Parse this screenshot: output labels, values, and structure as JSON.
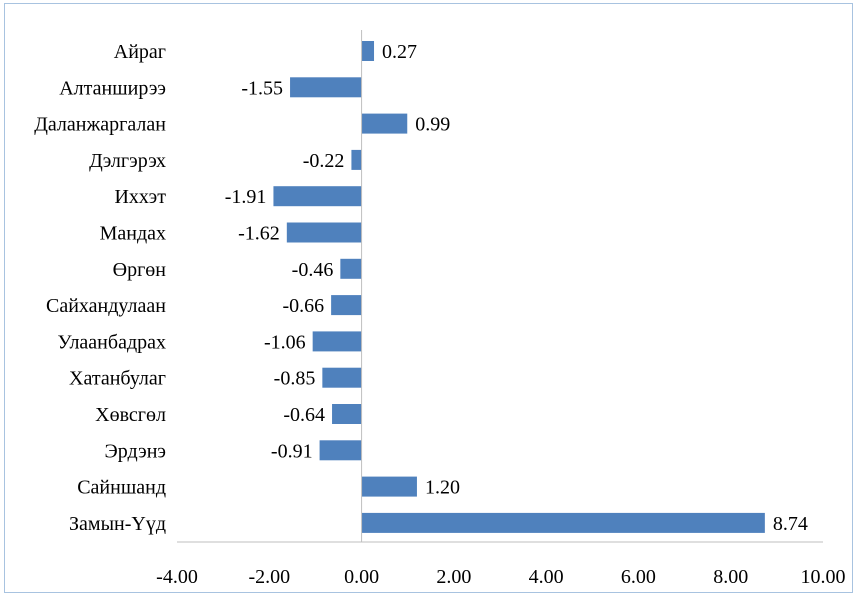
{
  "chart_data": {
    "type": "bar",
    "orientation": "horizontal",
    "categories": [
      "Айраг",
      "Алтанширээ",
      "Даланжаргалан",
      "Дэлгэрэх",
      "Иххэт",
      "Мандах",
      "Өргөн",
      "Сайхандулаан",
      "Улаанбадрах",
      "Хатанбулаг",
      "Хөвсгөл",
      "Эрдэнэ",
      "Сайншанд",
      "Замын-Үүд"
    ],
    "values": [
      0.27,
      -1.55,
      0.99,
      -0.22,
      -1.91,
      -1.62,
      -0.46,
      -0.66,
      -1.06,
      -0.85,
      -0.64,
      -0.91,
      1.2,
      8.74
    ],
    "value_labels": [
      "0.27",
      "-1.55",
      "0.99",
      "-0.22",
      "-1.91",
      "-1.62",
      "-0.46",
      "-0.66",
      "-1.06",
      "-0.85",
      "-0.64",
      "-0.91",
      "1.20",
      "8.74"
    ],
    "xlim": [
      -4.0,
      10.0
    ],
    "xticks": [
      -4,
      -2,
      0,
      2,
      4,
      6,
      8,
      10
    ],
    "xtick_labels": [
      "-4.00",
      "-2.00",
      "0.00",
      "2.00",
      "4.00",
      "6.00",
      "8.00",
      "10.00"
    ],
    "title": "",
    "xlabel": "",
    "ylabel": "",
    "grid": false,
    "legend": "none",
    "bar_color": "#4f81bd",
    "axis_color": "#bfbfbf",
    "frame_color": "#a8c3e0"
  }
}
